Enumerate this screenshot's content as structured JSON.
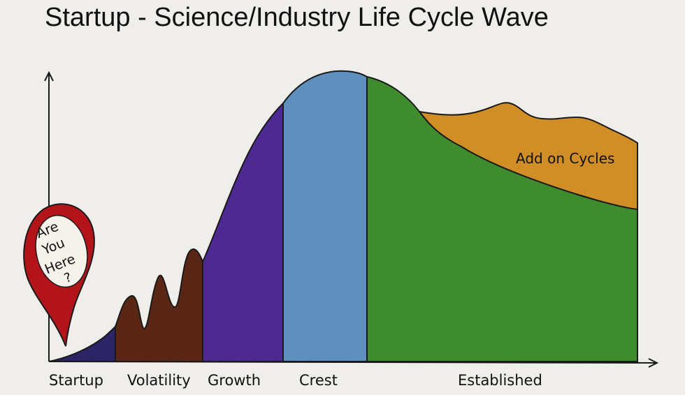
{
  "title": "Startup - Science/Industry Life Cycle Wave",
  "marker": {
    "lines": [
      "Are",
      "You",
      "Here",
      "?"
    ]
  },
  "stages": [
    {
      "label": "Startup",
      "color": "#2b2466"
    },
    {
      "label": "Volatility",
      "color": "#5a2716"
    },
    {
      "label": "Growth",
      "color": "#4c2a92"
    },
    {
      "label": "Crest",
      "color": "#5f8fbc"
    },
    {
      "label": "Established",
      "color": "#3f8c2f"
    }
  ],
  "addon": {
    "label": "Add on Cycles",
    "color": "#d18d26"
  },
  "marker_color": "#b3141a"
}
